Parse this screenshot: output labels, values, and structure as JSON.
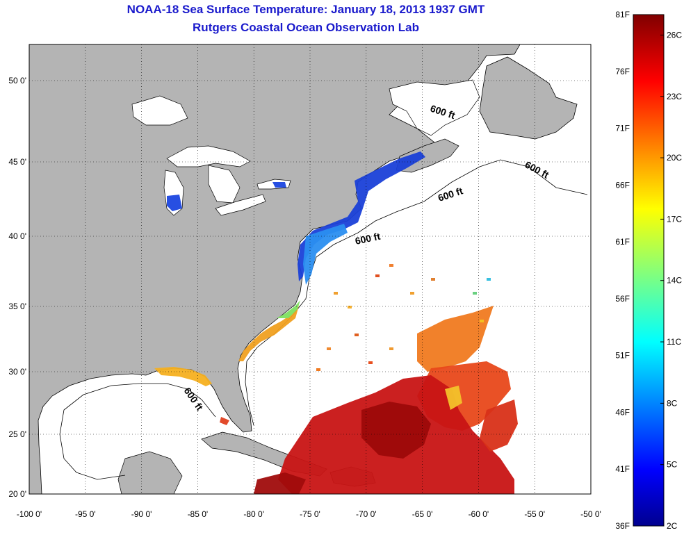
{
  "header": {
    "title": "NOAA-18 Sea Surface Temperature:  January 18, 2013 1937 GMT",
    "subtitle": "Rutgers Coastal Ocean Observation Lab"
  },
  "map": {
    "lat_ticks": [
      "50 0'",
      "45 0'",
      "40 0'",
      "35 0'",
      "30 0'",
      "25 0'",
      "20 0'"
    ],
    "lon_ticks": [
      "-100 0'",
      "-95 0'",
      "-90 0'",
      "-85 0'",
      "-80 0'",
      "-75 0'",
      "-70 0'",
      "-65 0'",
      "-60 0'",
      "-55 0'",
      "-50 0'"
    ],
    "lat_range": [
      20,
      52.5
    ],
    "lon_range": [
      -100,
      -50
    ],
    "grid": "dotted",
    "isobath_label": "600 ft",
    "land_color": "#b4b4b4",
    "ocean_color": "#ffffff"
  },
  "colorbar": {
    "fahrenheit_labels": [
      "81F",
      "76F",
      "71F",
      "66F",
      "61F",
      "56F",
      "51F",
      "46F",
      "41F",
      "36F"
    ],
    "celsius_labels": [
      "26C",
      "23C",
      "20C",
      "17C",
      "14C",
      "11C",
      "8C",
      "5C",
      "2C"
    ],
    "colormap": "jet",
    "range_f": [
      36,
      81
    ],
    "range_c": [
      2,
      27
    ]
  }
}
